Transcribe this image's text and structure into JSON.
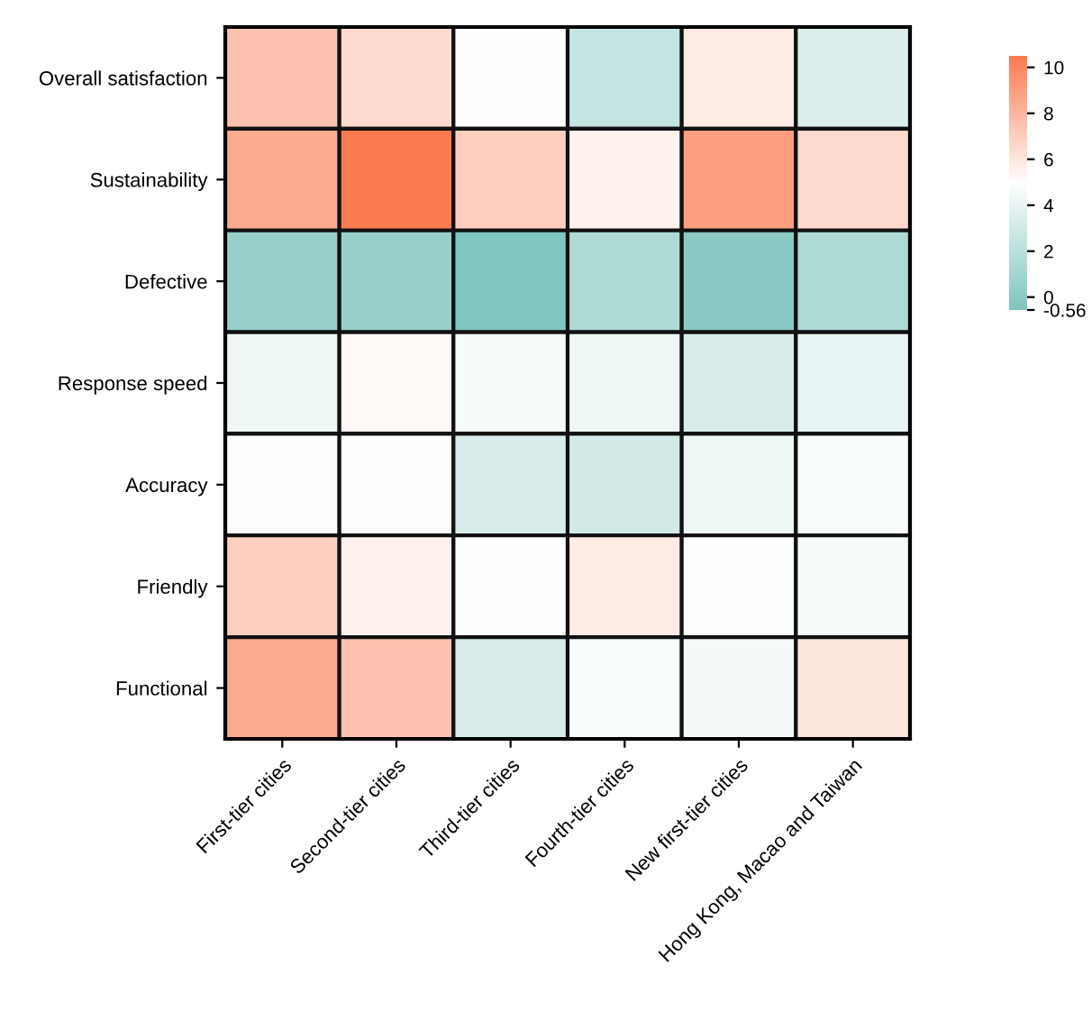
{
  "chart_data": {
    "type": "heatmap",
    "categories": [
      "First-tier cities",
      "Second-tier cities",
      "Third-tier cities",
      "Fourth-tier cities",
      "New first-tier cities",
      "Hong Kong, Macao and Taiwan"
    ],
    "y_categories": [
      "Overall satisfaction",
      "Sustainability",
      "Defective",
      "Response speed",
      "Accuracy",
      "Friendly",
      "Functional"
    ],
    "cells": [
      [
        7.5,
        6.5,
        5.0,
        2.5,
        5.8,
        3.5
      ],
      [
        8.5,
        10.5,
        7.0,
        5.5,
        9.0,
        6.5
      ],
      [
        0.5,
        0.5,
        -0.5,
        1.5,
        0.0,
        1.5
      ],
      [
        4.3,
        5.2,
        4.6,
        4.2,
        3.3,
        4.0
      ],
      [
        5.0,
        5.0,
        3.3,
        3.0,
        4.2,
        4.7
      ],
      [
        7.0,
        5.5,
        4.9,
        5.8,
        4.9,
        4.6
      ],
      [
        8.5,
        7.5,
        3.3,
        4.7,
        4.5,
        6.0
      ]
    ],
    "colors": [
      "#7fc5be",
      "#ffffff",
      "#fb7b50"
    ],
    "clim": [
      -0.56,
      10.5
    ],
    "cticks": [
      {
        "value": -0.56,
        "label": "-0.56"
      },
      0,
      2,
      4,
      6,
      8,
      10
    ],
    "grid": false
  }
}
